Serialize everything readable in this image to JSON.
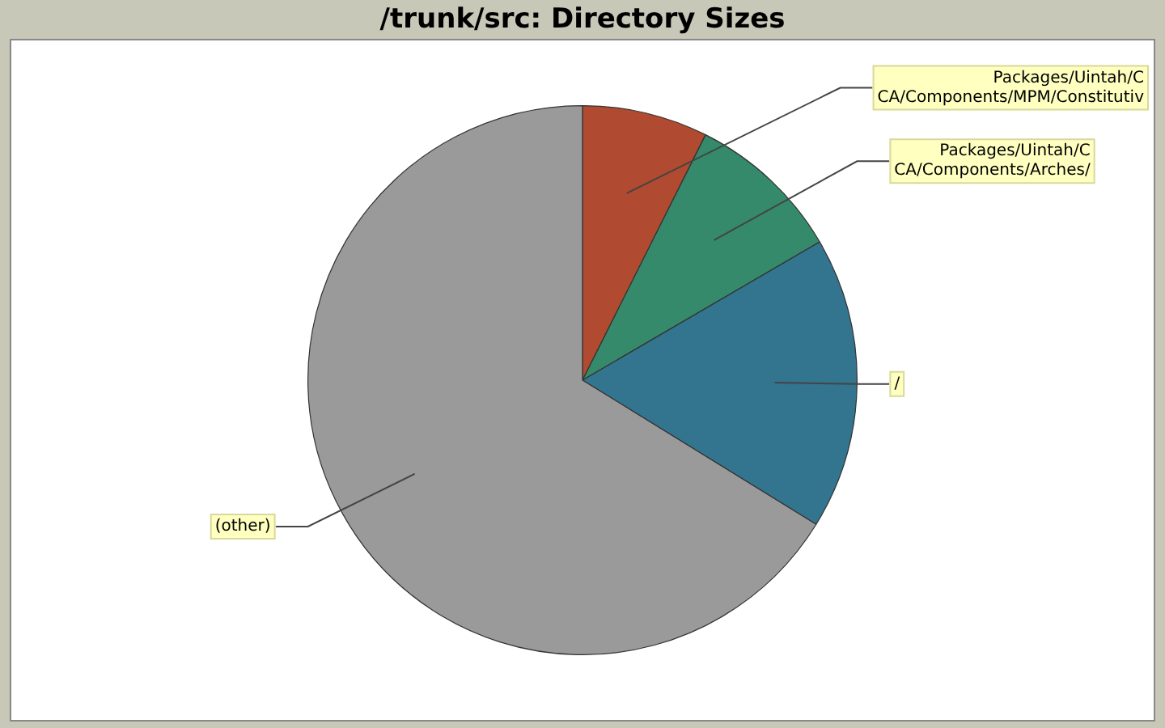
{
  "chart_data": {
    "type": "pie",
    "title": "/trunk/src: Directory Sizes",
    "categories": [
      "Packages/Uintah/CCA/Components/MPM/Constitutiv",
      "Packages/Uintah/CCA/Components/Arches/",
      "/",
      "(other)"
    ],
    "values": [
      7.4,
      9.2,
      17.2,
      66.2
    ],
    "colors": [
      "#b04a30",
      "#348a6a",
      "#33748e",
      "#9a9a9a"
    ],
    "legend": false
  }
}
